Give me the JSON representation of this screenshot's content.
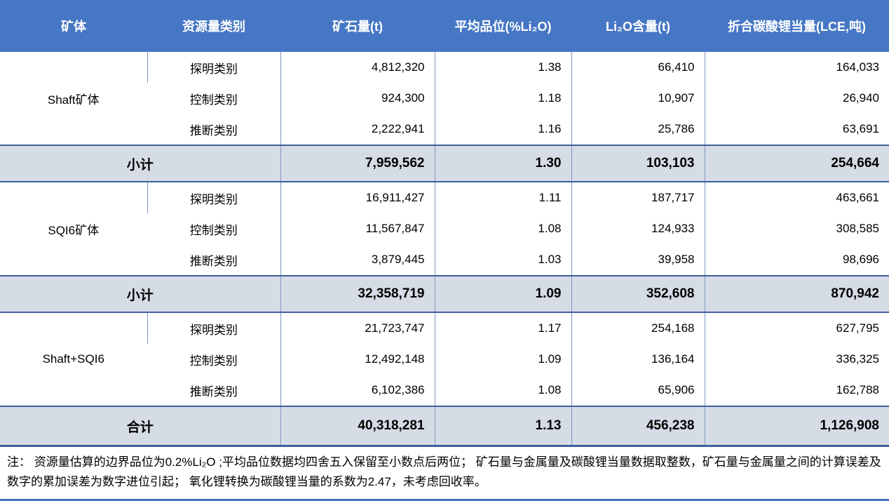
{
  "table": {
    "headers": [
      "矿体",
      "资源量类别",
      "矿石量(t)",
      "平均品位(%Li₂O)",
      "Li₂O含量(t)",
      "折合碳酸锂当量(LCE,吨)"
    ],
    "groups": [
      {
        "name": "Shaft矿体",
        "rows": [
          {
            "category": "探明类别",
            "ore": "4,812,320",
            "grade": "1.38",
            "li2o": "66,410",
            "lce": "164,033"
          },
          {
            "category": "控制类别",
            "ore": "924,300",
            "grade": "1.18",
            "li2o": "10,907",
            "lce": "26,940"
          },
          {
            "category": "推断类别",
            "ore": "2,222,941",
            "grade": "1.16",
            "li2o": "25,786",
            "lce": "63,691"
          }
        ],
        "subtotal": {
          "label": "小计",
          "ore": "7,959,562",
          "grade": "1.30",
          "li2o": "103,103",
          "lce": "254,664"
        }
      },
      {
        "name": "SQI6矿体",
        "rows": [
          {
            "category": "探明类别",
            "ore": "16,911,427",
            "grade": "1.11",
            "li2o": "187,717",
            "lce": "463,661"
          },
          {
            "category": "控制类别",
            "ore": "11,567,847",
            "grade": "1.08",
            "li2o": "124,933",
            "lce": "308,585"
          },
          {
            "category": "推断类别",
            "ore": "3,879,445",
            "grade": "1.03",
            "li2o": "39,958",
            "lce": "98,696"
          }
        ],
        "subtotal": {
          "label": "小计",
          "ore": "32,358,719",
          "grade": "1.09",
          "li2o": "352,608",
          "lce": "870,942"
        }
      },
      {
        "name": "Shaft+SQI6",
        "rows": [
          {
            "category": "探明类别",
            "ore": "21,723,747",
            "grade": "1.17",
            "li2o": "254,168",
            "lce": "627,795"
          },
          {
            "category": "控制类别",
            "ore": "12,492,148",
            "grade": "1.09",
            "li2o": "136,164",
            "lce": "336,325"
          },
          {
            "category": "推断类别",
            "ore": "6,102,386",
            "grade": "1.08",
            "li2o": "65,906",
            "lce": "162,788"
          }
        ]
      }
    ],
    "total": {
      "label": "合计",
      "ore": "40,318,281",
      "grade": "1.13",
      "li2o": "456,238",
      "lce": "1,126,908"
    },
    "note": "注： 资源量估算的边界品位为0.2%Li₂O ;平均品位数据均四舍五入保留至小数点后两位； 矿石量与金属量及碳酸锂当量数据取整数，矿石量与金属量之间的计算误差及数字的累加误差为数字进位引起； 氧化锂转换为碳酸锂当量的系数为2.47，未考虑回收率。",
    "colors": {
      "header_bg": "#4677c4",
      "subtotal_bg": "#d6dce5",
      "grid_line": "#7f97bf",
      "group_line": "#3d5f9b"
    }
  }
}
